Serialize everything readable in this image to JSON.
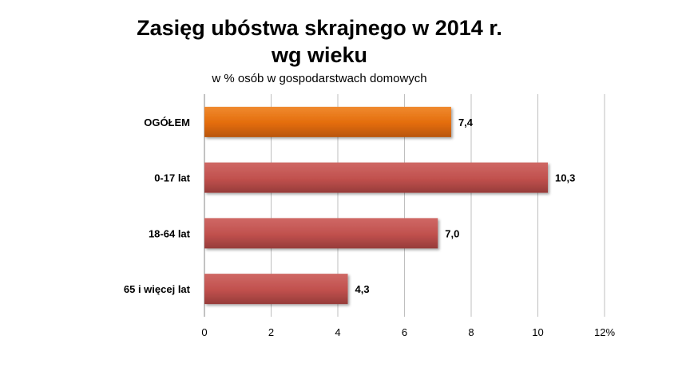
{
  "chart_data": {
    "type": "bar",
    "orientation": "horizontal",
    "title_line1": "Zasięg ubóstwa skrajnego w 2014 r.",
    "title_line2": "wg wieku",
    "subtitle": "w % osób w gospodarstwach domowych",
    "categories": [
      "OGÓŁEM",
      "0-17 lat",
      "18-64 lat",
      "65 i więcej lat"
    ],
    "values": [
      7.4,
      10.3,
      7.0,
      4.3
    ],
    "value_labels": [
      "7,4",
      "10,3",
      "7,0",
      "4,3"
    ],
    "bar_colors": [
      "#e36c0a",
      "#c0504d",
      "#c0504d",
      "#c0504d"
    ],
    "xlim": [
      0,
      12
    ],
    "ticks": [
      0,
      2,
      4,
      6,
      8,
      10,
      12
    ],
    "tick_labels": [
      "0",
      "2",
      "4",
      "6",
      "8",
      "10",
      "12%"
    ],
    "grid": true,
    "gridline_color": "#bfbfbf"
  }
}
